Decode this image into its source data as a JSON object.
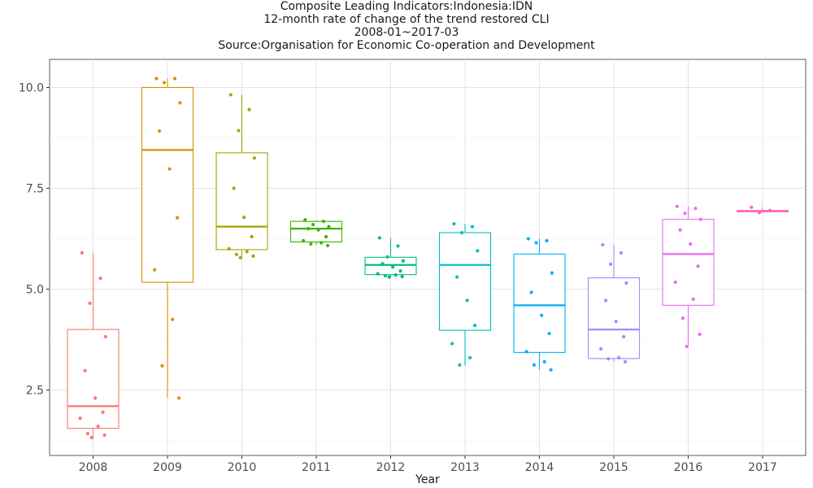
{
  "title_lines": [
    "Composite Leading Indicators:Indonesia:IDN",
    "12-month rate of change of the trend restored CLI",
    "2008-01~2017-03",
    "Source:Organisation for Economic Co-operation and Development"
  ],
  "chart_data": {
    "type": "box",
    "title": "Composite Leading Indicators:Indonesia:IDN",
    "xlabel": "Year",
    "ylabel": "",
    "ylim": [
      1.1,
      10.8
    ],
    "yticks": [
      2.5,
      5.0,
      7.5,
      10.0
    ],
    "ytick_labels": [
      "2.5",
      "5.0",
      "7.5",
      "10.0"
    ],
    "categories": [
      "2008",
      "2009",
      "2010",
      "2011",
      "2012",
      "2013",
      "2014",
      "2015",
      "2016",
      "2017"
    ],
    "grid": true,
    "legend": "none",
    "colors": [
      "#F8766D",
      "#D89000",
      "#A3A500",
      "#39B600",
      "#00BF7D",
      "#00BFC4",
      "#00B0F6",
      "#9590FF",
      "#E76BF3",
      "#FF62BC"
    ],
    "boxes": [
      {
        "year": "2008",
        "whisker_low": 1.3,
        "q1": 1.55,
        "median": 2.1,
        "q3": 4.0,
        "whisker_high": 5.9,
        "points": [
          5.9,
          5.27,
          4.65,
          3.82,
          2.98,
          2.3,
          1.95,
          1.8,
          1.6,
          1.42,
          1.38,
          1.32
        ]
      },
      {
        "year": "2009",
        "whisker_low": 2.3,
        "q1": 5.17,
        "median": 8.45,
        "q3": 10.0,
        "whisker_high": 10.22,
        "points": [
          10.22,
          10.22,
          10.12,
          9.62,
          8.92,
          7.98,
          6.77,
          5.48,
          4.25,
          3.1,
          2.3
        ]
      },
      {
        "year": "2010",
        "whisker_low": 5.8,
        "q1": 5.98,
        "median": 6.55,
        "q3": 8.38,
        "whisker_high": 9.82,
        "points": [
          9.82,
          9.45,
          8.93,
          8.25,
          7.5,
          6.78,
          6.3,
          6.0,
          5.93,
          5.86,
          5.82,
          5.78
        ]
      },
      {
        "year": "2011",
        "whisker_low": 6.1,
        "q1": 6.17,
        "median": 6.5,
        "q3": 6.68,
        "whisker_high": 6.7,
        "points": [
          6.72,
          6.68,
          6.6,
          6.55,
          6.5,
          6.47,
          6.3,
          6.2,
          6.15,
          6.12,
          6.08
        ]
      },
      {
        "year": "2012",
        "whisker_low": 5.3,
        "q1": 5.36,
        "median": 5.6,
        "q3": 5.79,
        "whisker_high": 6.27,
        "points": [
          6.27,
          6.07,
          5.8,
          5.7,
          5.63,
          5.55,
          5.45,
          5.38,
          5.35,
          5.33,
          5.31,
          5.3
        ]
      },
      {
        "year": "2013",
        "whisker_low": 3.1,
        "q1": 3.98,
        "median": 5.6,
        "q3": 6.4,
        "whisker_high": 6.62,
        "points": [
          6.62,
          6.55,
          6.4,
          5.95,
          5.3,
          4.72,
          4.1,
          3.65,
          3.3,
          3.12
        ]
      },
      {
        "year": "2014",
        "whisker_low": 3.0,
        "q1": 3.43,
        "median": 4.6,
        "q3": 5.87,
        "whisker_high": 6.25,
        "points": [
          6.25,
          6.2,
          6.15,
          5.4,
          4.92,
          4.35,
          3.9,
          3.45,
          3.2,
          3.12,
          3.0
        ]
      },
      {
        "year": "2015",
        "whisker_low": 3.2,
        "q1": 3.28,
        "median": 4.0,
        "q3": 5.28,
        "whisker_high": 6.1,
        "points": [
          6.1,
          5.9,
          5.62,
          5.15,
          4.72,
          4.2,
          3.82,
          3.52,
          3.3,
          3.27,
          3.2
        ]
      },
      {
        "year": "2016",
        "whisker_low": 3.6,
        "q1": 4.6,
        "median": 5.87,
        "q3": 6.73,
        "whisker_high": 7.05,
        "points": [
          7.05,
          7.0,
          6.88,
          6.73,
          6.47,
          6.12,
          5.57,
          5.17,
          4.75,
          4.28,
          3.88,
          3.58
        ]
      },
      {
        "year": "2017",
        "whisker_low": 6.9,
        "q1": 6.92,
        "median": 6.93,
        "q3": 6.95,
        "whisker_high": 7.03,
        "points": [
          7.03,
          6.95,
          6.9
        ]
      }
    ]
  }
}
